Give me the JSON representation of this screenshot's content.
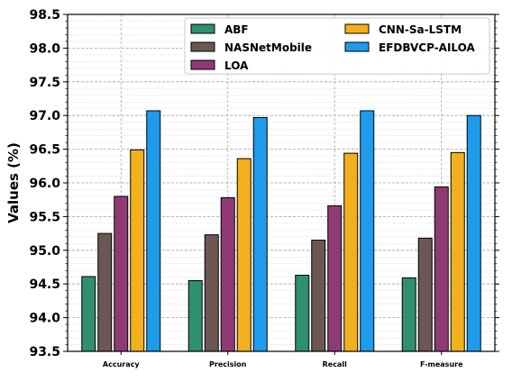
{
  "colors": {
    "ABF": "#2f8f6e",
    "NASNetMobile": "#6b5753",
    "LOA": "#8f3a73",
    "CNN-Sa-LSTM": "#f2b01e",
    "EFDBVCP-AILOA": "#1e9bea"
  },
  "chart_data": {
    "type": "bar",
    "categories": [
      "Accuracy",
      "Precision",
      "Recall",
      "F-measure"
    ],
    "series": [
      {
        "name": "ABF",
        "values": [
          94.61,
          94.55,
          94.63,
          94.59
        ]
      },
      {
        "name": "NASNetMobile",
        "values": [
          95.25,
          95.23,
          95.15,
          95.18
        ]
      },
      {
        "name": "LOA",
        "values": [
          95.8,
          95.78,
          95.66,
          95.94
        ]
      },
      {
        "name": "CNN-Sa-LSTM",
        "values": [
          96.49,
          96.36,
          96.44,
          96.45
        ]
      },
      {
        "name": "EFDBVCP-AILOA",
        "values": [
          97.07,
          96.97,
          97.07,
          97.0
        ]
      }
    ],
    "title": "",
    "xlabel": "",
    "ylabel": "Values (%)",
    "ylim": [
      93.5,
      98.5
    ],
    "yticks": [
      "93.5",
      "94.0",
      "94.5",
      "95.0",
      "95.5",
      "96.0",
      "96.5",
      "97.0",
      "97.5",
      "98.0",
      "98.5"
    ],
    "grid": true,
    "legend_position": "top-right",
    "legend_columns": 2
  }
}
